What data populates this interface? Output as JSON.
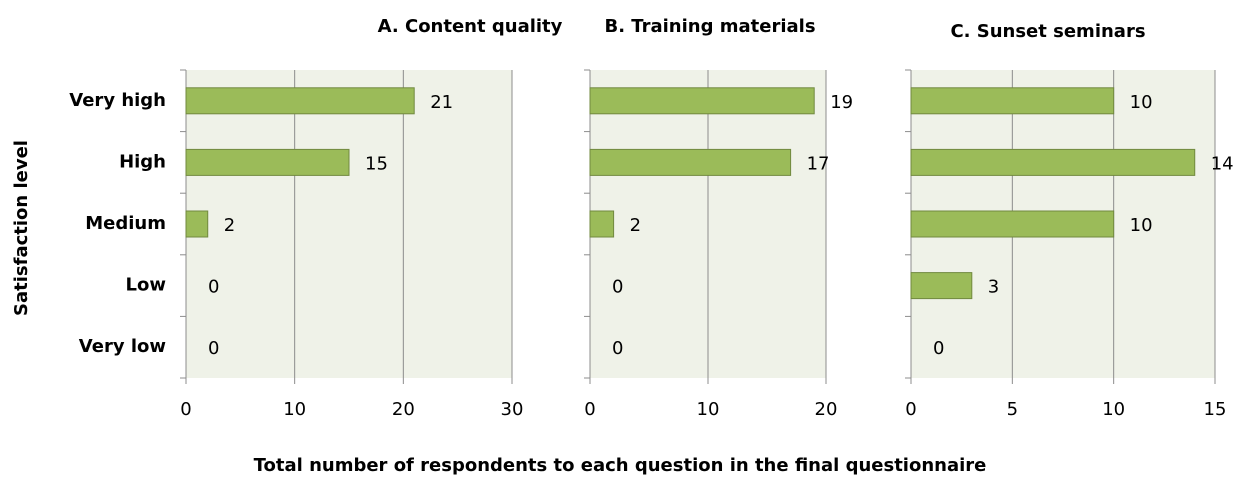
{
  "y_axis_label": "Satisfaction level",
  "x_axis_label": "Total number of respondents to each question in the final questionnaire",
  "chart_data": [
    {
      "type": "bar",
      "title": "A. Content quality",
      "categories": [
        "Very high",
        "High",
        "Medium",
        "Low",
        "Very low"
      ],
      "values": [
        21,
        15,
        2,
        0,
        0
      ],
      "color": "#9bbb59",
      "xlim": [
        0,
        30
      ],
      "xticks": [
        0,
        10,
        20,
        30
      ],
      "grid": true
    },
    {
      "type": "bar",
      "title": "B. Training materials",
      "values": [
        19,
        17,
        2,
        0,
        0
      ],
      "color": "#9bbb59",
      "xlim": [
        0,
        20
      ],
      "xticks": [
        0,
        10,
        20
      ],
      "grid": true
    },
    {
      "type": "bar",
      "title": "C. Sunset seminars",
      "values": [
        10,
        14,
        10,
        3,
        0
      ],
      "color": "#9bbb59",
      "xlim": [
        0,
        15
      ],
      "xticks": [
        0,
        5,
        10,
        15
      ],
      "grid": true
    }
  ]
}
